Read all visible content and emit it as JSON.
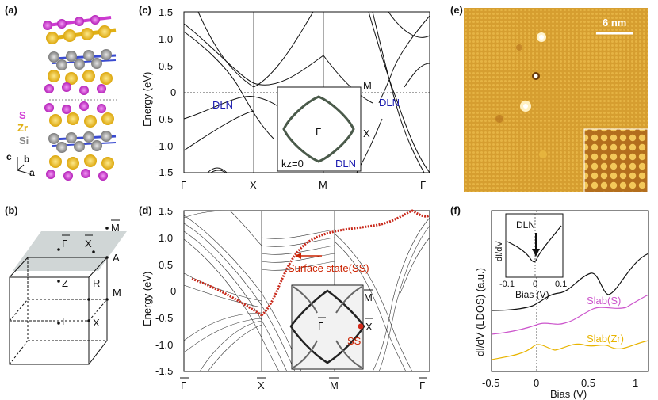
{
  "panel_labels": [
    "(a)",
    "(b)",
    "(c)",
    "(d)",
    "(e)",
    "(f)"
  ],
  "panel_a": {
    "legend": [
      "S",
      "Zr",
      "Si"
    ],
    "axes": [
      "c",
      "b",
      "a"
    ],
    "colors": {
      "S": "#d23fd6",
      "Zr": "#f2c21a",
      "Si": "#9a9a9a",
      "bond": "#3a4bd0"
    }
  },
  "panel_b": {
    "labels": {
      "gamma_bar": "Γ",
      "x_bar": "X",
      "m_bar": "M",
      "a": "A",
      "z": "Z",
      "r": "R",
      "m": "M",
      "gamma": "Γ",
      "x": "X"
    }
  },
  "panel_c": {
    "ylabel": "Energy (eV)",
    "yticks": [
      "1.5",
      "1.0",
      "0.5",
      "0",
      "-0.5",
      "-1.0",
      "-1.5"
    ],
    "xticks": [
      "Γ",
      "X",
      "M",
      "Γ"
    ],
    "dln_left": "DLN",
    "dln_right": "DLN",
    "m_label": "M",
    "inset": {
      "gamma": "Γ",
      "x": "X",
      "kz": "kz=0",
      "dln": "DLN"
    }
  },
  "panel_d": {
    "ylabel": "Energy (eV)",
    "yticks": [
      "1.5",
      "1.0",
      "0.5",
      "0",
      "-0.5",
      "-1.0",
      "-1.5"
    ],
    "xticks": [
      "Γ",
      "X",
      "M",
      "Γ"
    ],
    "ss_label": "Surface state(SS)",
    "inset": {
      "m": "M",
      "gamma": "Γ",
      "x": "X",
      "ss": "SS"
    }
  },
  "panel_e": {
    "scalebar": "6 nm"
  },
  "panel_f": {
    "ylabel": "dI/dV (LDOS) (a.u.)",
    "xlabel": "Bias (V)",
    "xticks": [
      "-0.5",
      "0",
      "0.5",
      "1"
    ],
    "curves": [
      "Slab(S)",
      "Slab(Zr)"
    ],
    "inset": {
      "ylabel": "dI/dV",
      "dln": "DLN",
      "xlabel": "Bias (V)",
      "xticks": [
        "-0.1",
        "0",
        "0.1"
      ]
    },
    "colors": {
      "exp": "#111111",
      "slab_s": "#cc55cc",
      "slab_zr": "#e8b400"
    }
  }
}
